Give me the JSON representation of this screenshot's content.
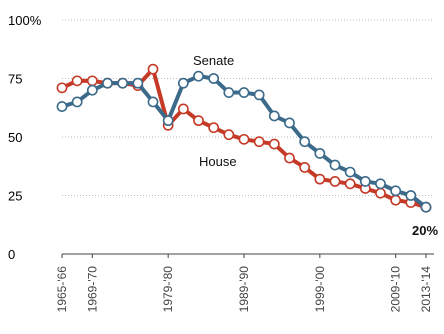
{
  "chart_data": {
    "type": "line",
    "title": "",
    "xlabel": "",
    "ylabel": "",
    "ylim": [
      0,
      100
    ],
    "yticks": [
      "100%",
      "75",
      "50",
      "25",
      "0"
    ],
    "ytick_values": [
      100,
      75,
      50,
      25,
      0
    ],
    "grid": "horizontal-dotted",
    "congress_index": [
      1,
      2,
      3,
      4,
      5,
      6,
      7,
      8,
      9,
      10,
      11,
      12,
      13,
      14,
      15,
      16,
      17,
      18,
      19,
      20,
      21,
      22,
      23,
      24,
      25
    ],
    "xticks": [
      {
        "index": 1,
        "label": "1965-'66"
      },
      {
        "index": 3,
        "label": "1969-'70"
      },
      {
        "index": 8,
        "label": "1979-'80"
      },
      {
        "index": 13,
        "label": "1989-'90"
      },
      {
        "index": 18,
        "label": "1999-'00"
      },
      {
        "index": 23,
        "label": "2009-'10"
      },
      {
        "index": 25,
        "label": "2013-'14"
      }
    ],
    "series": [
      {
        "name": "Senate",
        "color": "#3c6a8a",
        "values": [
          63,
          65,
          70,
          73,
          73,
          73,
          65,
          57,
          73,
          76,
          75,
          69,
          69,
          68,
          59,
          56,
          48,
          43,
          38,
          35,
          31,
          30,
          27,
          25,
          20
        ]
      },
      {
        "name": "House",
        "color": "#c53a26",
        "values": [
          71,
          74,
          74,
          73,
          73,
          72,
          79,
          55,
          62,
          57,
          54,
          51,
          49,
          48,
          47,
          41,
          37,
          32,
          31,
          30,
          28,
          26,
          23,
          22,
          20
        ]
      }
    ],
    "annotations": [
      {
        "text": "20%",
        "at_index": 25,
        "value": 20
      }
    ]
  }
}
